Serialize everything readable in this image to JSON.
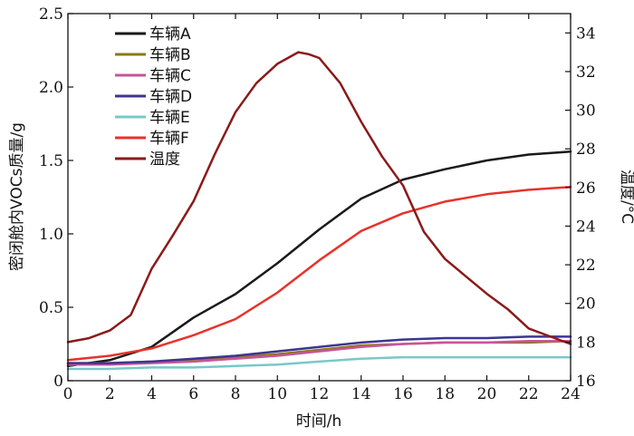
{
  "chart_data": {
    "type": "line",
    "title": "",
    "xlabel": "时间/h",
    "ylabel": "密闭舱内VOCs质量/g",
    "y2label": "温度/°C",
    "xlim": [
      0,
      24
    ],
    "ylim": [
      0,
      2.5
    ],
    "y2lim": [
      16,
      35
    ],
    "xticks": [
      0,
      2,
      4,
      6,
      8,
      10,
      12,
      14,
      16,
      18,
      20,
      22,
      24
    ],
    "yticks": [
      "0",
      "0.5",
      "1.0",
      "1.5",
      "2.0",
      "2.5"
    ],
    "y2ticks": [
      16,
      18,
      20,
      22,
      24,
      26,
      28,
      30,
      32,
      34
    ],
    "legend_position": "top-left",
    "grid": false,
    "x": [
      0,
      2,
      4,
      6,
      8,
      10,
      12,
      14,
      16,
      18,
      20,
      22,
      24
    ],
    "series": [
      {
        "name": "车辆A",
        "axis": "left",
        "color": "#1a1a1a",
        "values": [
          0.1,
          0.14,
          0.23,
          0.43,
          0.59,
          0.8,
          1.03,
          1.24,
          1.37,
          1.44,
          1.5,
          1.54,
          1.56
        ]
      },
      {
        "name": "车辆B",
        "axis": "left",
        "color": "#8a7a10",
        "values": [
          0.12,
          0.12,
          0.13,
          0.14,
          0.16,
          0.18,
          0.21,
          0.24,
          0.25,
          0.26,
          0.26,
          0.26,
          0.27
        ]
      },
      {
        "name": "车辆C",
        "axis": "left",
        "color": "#c8559a",
        "values": [
          0.11,
          0.11,
          0.12,
          0.13,
          0.15,
          0.17,
          0.2,
          0.23,
          0.25,
          0.26,
          0.26,
          0.27,
          0.27
        ]
      },
      {
        "name": "车辆D",
        "axis": "left",
        "color": "#3d3591",
        "values": [
          0.12,
          0.12,
          0.13,
          0.15,
          0.17,
          0.2,
          0.23,
          0.26,
          0.28,
          0.29,
          0.29,
          0.3,
          0.3
        ]
      },
      {
        "name": "车辆E",
        "axis": "left",
        "color": "#79c8c8",
        "values": [
          0.08,
          0.08,
          0.09,
          0.09,
          0.1,
          0.11,
          0.13,
          0.15,
          0.16,
          0.16,
          0.16,
          0.16,
          0.16
        ]
      },
      {
        "name": "车辆F",
        "axis": "left",
        "color": "#e8322a",
        "values": [
          0.14,
          0.17,
          0.22,
          0.31,
          0.42,
          0.6,
          0.82,
          1.02,
          1.14,
          1.22,
          1.27,
          1.3,
          1.32
        ]
      },
      {
        "name": "温度",
        "axis": "right",
        "color": "#8b1a1a",
        "x": [
          0,
          1,
          2,
          3,
          4,
          5,
          6,
          7,
          8,
          9,
          10,
          11,
          11.5,
          12,
          13,
          14,
          15,
          16,
          17,
          18,
          19,
          20,
          21,
          22,
          23,
          24
        ],
        "values": [
          18.0,
          18.2,
          18.6,
          19.4,
          21.8,
          23.5,
          25.3,
          27.7,
          29.9,
          31.4,
          32.4,
          33.0,
          32.9,
          32.7,
          31.4,
          29.4,
          27.6,
          26.1,
          23.7,
          22.3,
          21.4,
          20.5,
          19.7,
          18.7,
          18.3,
          17.9
        ]
      }
    ]
  }
}
